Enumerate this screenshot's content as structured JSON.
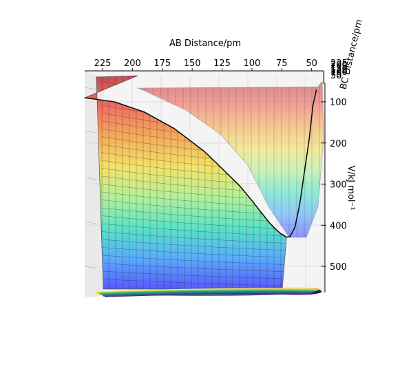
{
  "chart_data": {
    "type": "surface3d",
    "x_axis": {
      "label": "AB Distance/pm",
      "ticks": [
        225,
        200,
        175,
        150,
        125,
        100,
        75,
        50
      ],
      "range": [
        240,
        40
      ]
    },
    "y_axis": {
      "label": "BC Distance/pm",
      "ticks": [
        "225",
        "200",
        "175",
        "150",
        "125",
        "100",
        "75",
        "50"
      ]
    },
    "z_axis": {
      "label": "V/kJ mol⁻¹",
      "ticks": [
        100,
        200,
        300,
        400,
        500
      ],
      "range": [
        40,
        560
      ]
    },
    "minimum_path": {
      "ab": [
        240,
        215,
        190,
        165,
        140,
        125,
        110,
        100,
        92,
        85,
        80,
        76,
        73,
        71,
        68,
        64,
        60,
        56,
        52,
        49,
        46
      ],
      "v": [
        90,
        100,
        125,
        165,
        220,
        262,
        305,
        340,
        370,
        395,
        410,
        420,
        425,
        429,
        427,
        405,
        350,
        270,
        190,
        110,
        70
      ]
    },
    "colormap": [
      "#3f3fff",
      "#3fa0ff",
      "#3fe0c0",
      "#a8f08c",
      "#f5e050",
      "#f6a040",
      "#f0584a",
      "#c0303a"
    ],
    "contour_colors": [
      "#ffe24a",
      "#a6db38",
      "#3fba72",
      "#1f9a8a",
      "#2b7a8e",
      "#3a528b",
      "#46337e",
      "#440154"
    ]
  }
}
